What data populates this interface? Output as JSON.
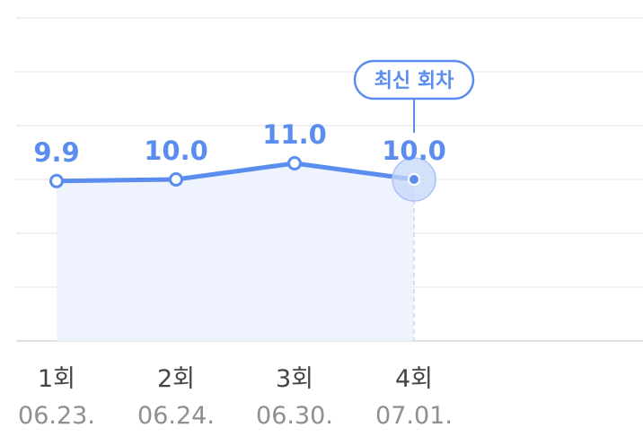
{
  "colors": {
    "accent": "#5b8def",
    "area": "#eef3fe",
    "halo": "#c5d7fa"
  },
  "badge": {
    "label": "최신 회차"
  },
  "chart_data": {
    "type": "line",
    "title": "",
    "xlabel": "",
    "ylabel": "",
    "categories": [
      "1회",
      "2회",
      "3회",
      "4회"
    ],
    "dates": [
      "06.23.",
      "06.24.",
      "06.30.",
      "07.01."
    ],
    "values": [
      9.9,
      10.0,
      11.0,
      10.0
    ],
    "value_labels": [
      "9.9",
      "10.0",
      "11.0",
      "10.0"
    ],
    "latest_index": 3,
    "ylim": [
      0,
      20
    ],
    "grid": true,
    "legend": "none"
  }
}
